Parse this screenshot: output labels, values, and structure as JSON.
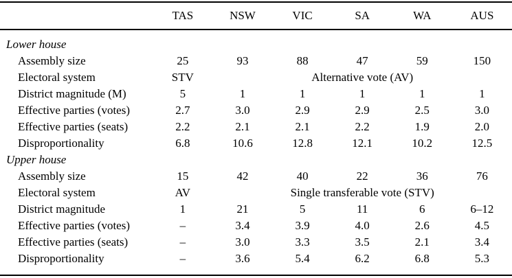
{
  "chart_data": {
    "type": "table",
    "columns": [
      "",
      "TAS",
      "NSW",
      "VIC",
      "SA",
      "WA",
      "AUS"
    ],
    "sections": [
      {
        "title": "Lower house",
        "rows": [
          {
            "label": "Assembly size",
            "values": [
              "25",
              "93",
              "88",
              "47",
              "59",
              "150"
            ]
          },
          {
            "label": "Electoral system",
            "values": [
              "STV"
            ],
            "span": "Alternative vote (AV)"
          },
          {
            "label": "District magnitude (M)",
            "values": [
              "5",
              "1",
              "1",
              "1",
              "1",
              "1"
            ]
          },
          {
            "label": "Effective parties (votes)",
            "values": [
              "2.7",
              "3.0",
              "2.9",
              "2.9",
              "2.5",
              "3.0"
            ]
          },
          {
            "label": "Effective parties (seats)",
            "values": [
              "2.2",
              "2.1",
              "2.1",
              "2.2",
              "1.9",
              "2.0"
            ]
          },
          {
            "label": "Disproportionality",
            "values": [
              "6.8",
              "10.6",
              "12.8",
              "12.1",
              "10.2",
              "12.5"
            ]
          }
        ]
      },
      {
        "title": "Upper house",
        "rows": [
          {
            "label": "Assembly size",
            "values": [
              "15",
              "42",
              "40",
              "22",
              "36",
              "76"
            ]
          },
          {
            "label": "Electoral system",
            "values": [
              "AV"
            ],
            "span": "Single transferable vote (STV)"
          },
          {
            "label": "District magnitude",
            "values": [
              "1",
              "21",
              "5",
              "11",
              "6",
              "6–12"
            ]
          },
          {
            "label": "Effective parties (votes)",
            "values": [
              "–",
              "3.4",
              "3.9",
              "4.0",
              "2.6",
              "4.5"
            ]
          },
          {
            "label": "Effective parties (seats)",
            "values": [
              "–",
              "3.0",
              "3.3",
              "3.5",
              "2.1",
              "3.4"
            ]
          },
          {
            "label": "Disproportionality",
            "values": [
              "–",
              "3.6",
              "5.4",
              "6.2",
              "6.8",
              "5.3"
            ]
          }
        ]
      }
    ]
  }
}
